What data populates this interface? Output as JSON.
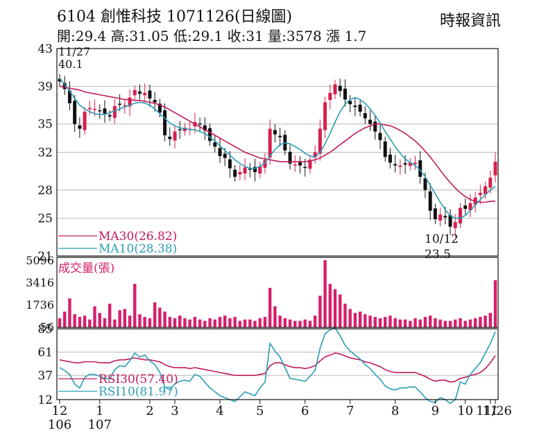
{
  "header": {
    "title": "6104  創惟科技 1071126(日線圖)",
    "quote": "開:29.4 高:31.05 低:29.1 收:31 量:3578 漲 1.7",
    "source": "時報資訊"
  },
  "colors": {
    "up": "#d6204e",
    "down": "#111111",
    "ma30": "#c2185b",
    "ma10": "#2a9db5",
    "volume": "#d6206a",
    "grid": "#b8b8b8"
  },
  "chart_data": [
    {
      "type": "candlestick",
      "y_ticks": [
        43,
        39,
        35,
        32,
        28,
        25,
        21
      ],
      "ylim": [
        21,
        43
      ],
      "annotations": {
        "high_date": "11/27",
        "high_value": "40.1",
        "low_date": "10/12",
        "low_value": "23.5"
      },
      "legend": [
        {
          "key": "ma30",
          "label": "MA30(26.82)"
        },
        {
          "key": "ma10",
          "label": "MA10(28.38)"
        }
      ],
      "close": [
        39.5,
        38.7,
        37.2,
        35.0,
        34.5,
        36.3,
        36.7,
        36.6,
        36.4,
        36.1,
        35.8,
        36.9,
        37.1,
        37.0,
        37.8,
        38.6,
        38.2,
        38.3,
        37.7,
        37.3,
        36.2,
        33.8,
        33.4,
        34.2,
        34.4,
        34.6,
        34.5,
        35.2,
        35.0,
        34.3,
        33.2,
        32.6,
        31.6,
        31.4,
        30.3,
        29.4,
        29.9,
        30.4,
        30.2,
        29.9,
        30.5,
        31.2,
        34.5,
        33.9,
        33.6,
        32.2,
        30.8,
        30.7,
        30.6,
        30.4,
        31.2,
        32.0,
        34.5,
        37.3,
        38.3,
        39.2,
        38.5,
        37.6,
        37.1,
        36.8,
        36.3,
        35.6,
        35.0,
        34.2,
        33.3,
        31.5,
        30.9,
        30.6,
        30.6,
        30.7,
        30.9,
        30.9,
        29.4,
        28.0,
        25.8,
        24.9,
        25.4,
        25.1,
        24.1,
        24.6,
        26.1,
        26.0,
        26.6,
        27.2,
        27.7,
        28.4,
        29.3,
        31.0
      ],
      "ma30": {
        "name": "MA30",
        "values": [
          39.0,
          38.9,
          38.8,
          38.7,
          38.6,
          38.4,
          38.3,
          38.2,
          38.1,
          38.0,
          37.9,
          37.8,
          37.7,
          37.6,
          37.6,
          37.5,
          37.5,
          37.4,
          37.3,
          37.2,
          37.0,
          36.8,
          36.5,
          36.2,
          35.9,
          35.6,
          35.3,
          35.0,
          34.7,
          34.4,
          34.1,
          33.8,
          33.5,
          33.2,
          32.9,
          32.6,
          32.3,
          32.0,
          31.8,
          31.6,
          31.4,
          31.3,
          31.2,
          31.1,
          31.0,
          31.0,
          31.0,
          31.0,
          31.0,
          31.0,
          31.1,
          31.2,
          31.4,
          31.7,
          32.0,
          32.4,
          32.8,
          33.2,
          33.6,
          34.0,
          34.3,
          34.6,
          34.8,
          35.0,
          35.0,
          34.9,
          34.8,
          34.6,
          34.3,
          34.0,
          33.6,
          33.2,
          32.7,
          32.1,
          31.5,
          30.8,
          30.1,
          29.4,
          28.8,
          28.2,
          27.7,
          27.3,
          27.0,
          26.8,
          26.7,
          26.7,
          26.8,
          26.82
        ]
      },
      "ma10": {
        "name": "MA10",
        "values": [
          39.8,
          39.2,
          38.5,
          37.7,
          37.0,
          36.6,
          36.3,
          36.1,
          36.0,
          36.0,
          36.2,
          36.4,
          36.6,
          36.8,
          37.0,
          37.2,
          37.3,
          37.2,
          37.0,
          36.6,
          36.1,
          35.6,
          35.1,
          34.8,
          34.6,
          34.5,
          34.4,
          34.4,
          34.2,
          34.0,
          33.6,
          33.2,
          32.7,
          32.2,
          31.7,
          31.2,
          30.8,
          30.5,
          30.3,
          30.3,
          30.5,
          30.9,
          31.6,
          32.3,
          32.8,
          33.0,
          32.9,
          32.6,
          32.3,
          31.9,
          31.6,
          31.5,
          32.0,
          32.9,
          34.0,
          35.2,
          36.3,
          37.1,
          37.6,
          37.8,
          37.6,
          37.2,
          36.6,
          35.9,
          35.1,
          34.2,
          33.4,
          32.6,
          31.9,
          31.3,
          30.9,
          30.6,
          30.1,
          29.4,
          28.5,
          27.6,
          26.7,
          25.9,
          25.3,
          25.0,
          25.0,
          25.3,
          25.8,
          26.4,
          27.0,
          27.5,
          28.0,
          28.38
        ]
      }
    },
    {
      "type": "bar",
      "title": "成交量(張)",
      "y_ticks": [
        5096,
        3416,
        1736,
        56
      ],
      "ylim": [
        0,
        5096
      ],
      "values": [
        700,
        1200,
        2200,
        1000,
        800,
        900,
        600,
        1600,
        1100,
        700,
        1800,
        600,
        1300,
        1400,
        900,
        3300,
        1000,
        800,
        700,
        1900,
        1500,
        1200,
        800,
        700,
        900,
        700,
        600,
        800,
        600,
        500,
        700,
        600,
        800,
        900,
        700,
        800,
        500,
        600,
        600,
        500,
        700,
        800,
        3000,
        1600,
        900,
        700,
        600,
        500,
        500,
        600,
        500,
        900,
        2400,
        5096,
        3300,
        2900,
        2500,
        1800,
        1400,
        1100,
        1200,
        1000,
        900,
        800,
        700,
        800,
        900,
        700,
        600,
        600,
        500,
        700,
        600,
        800,
        900,
        700,
        600,
        500,
        500,
        600,
        700,
        500,
        600,
        700,
        800,
        900,
        1100,
        3578
      ]
    },
    {
      "type": "line",
      "y_ticks": [
        85,
        61,
        37,
        12
      ],
      "ylim": [
        12,
        85
      ],
      "legend": [
        {
          "key": "rsi30",
          "label": "RSI30(57.40)"
        },
        {
          "key": "rsi10",
          "label": "RSI10(81.97)"
        }
      ],
      "rsi30": {
        "name": "RSI30",
        "values": [
          53,
          52,
          51,
          50,
          50,
          51,
          51,
          51,
          50,
          50,
          50,
          52,
          53,
          53,
          54,
          55,
          54,
          53,
          53,
          52,
          51,
          48,
          46,
          45,
          45,
          45,
          44,
          45,
          44,
          43,
          42,
          41,
          40,
          39,
          38,
          37,
          37,
          37,
          37,
          37,
          38,
          39,
          47,
          50,
          50,
          48,
          46,
          45,
          45,
          44,
          45,
          47,
          52,
          56,
          58,
          60,
          59,
          57,
          55,
          54,
          53,
          51,
          50,
          48,
          46,
          43,
          41,
          40,
          40,
          40,
          40,
          40,
          38,
          36,
          33,
          31,
          32,
          32,
          30,
          31,
          34,
          35,
          37,
          38,
          40,
          44,
          50,
          57.4
        ]
      },
      "rsi10": {
        "name": "RSI10",
        "values": [
          45,
          42,
          38,
          28,
          24,
          35,
          38,
          38,
          36,
          34,
          33,
          43,
          47,
          46,
          52,
          60,
          56,
          58,
          52,
          48,
          40,
          25,
          22,
          28,
          31,
          32,
          31,
          38,
          36,
          30,
          24,
          20,
          16,
          14,
          12,
          10,
          15,
          20,
          18,
          16,
          24,
          30,
          70,
          62,
          56,
          45,
          34,
          33,
          32,
          31,
          36,
          42,
          65,
          80,
          84,
          86,
          78,
          68,
          62,
          58,
          54,
          48,
          44,
          38,
          33,
          26,
          23,
          22,
          24,
          24,
          25,
          25,
          20,
          14,
          10,
          9,
          14,
          12,
          8,
          12,
          30,
          28,
          38,
          44,
          50,
          60,
          70,
          81.97
        ]
      },
      "x_ticks": [
        {
          "i": 0,
          "label": "12",
          "sub": "106"
        },
        {
          "i": 8,
          "label": "1",
          "sub": "107"
        },
        {
          "i": 18,
          "label": "2",
          "sub": ""
        },
        {
          "i": 23,
          "label": "3",
          "sub": ""
        },
        {
          "i": 32,
          "label": "4",
          "sub": ""
        },
        {
          "i": 40,
          "label": "5",
          "sub": ""
        },
        {
          "i": 49,
          "label": "6",
          "sub": ""
        },
        {
          "i": 58,
          "label": "7",
          "sub": ""
        },
        {
          "i": 67,
          "label": "8",
          "sub": ""
        },
        {
          "i": 75,
          "label": "9",
          "sub": ""
        },
        {
          "i": 81,
          "label": "10",
          "sub": ""
        },
        {
          "i": 86,
          "label": "11",
          "sub": ""
        },
        {
          "i": 87,
          "label": "11/26",
          "sub": ""
        }
      ]
    }
  ]
}
